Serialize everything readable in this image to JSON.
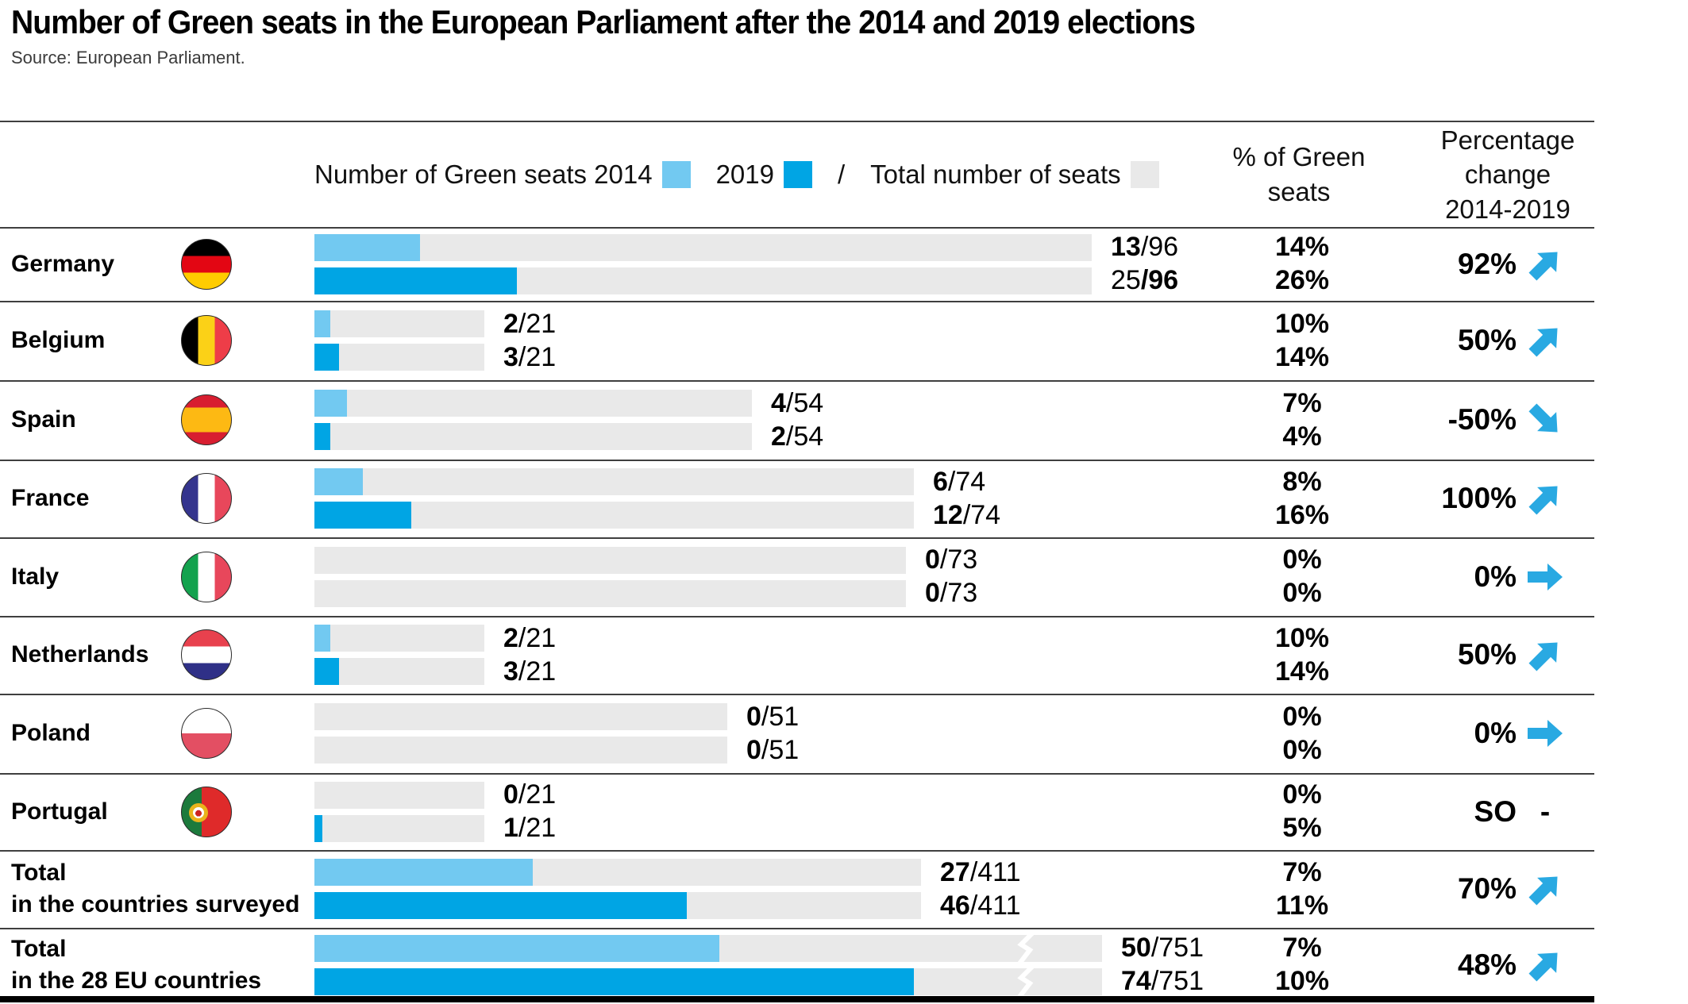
{
  "title": "Number of Green seats in the European Parliament after the 2014 and 2019 elections",
  "source": "Source: European Parliament.",
  "legend": {
    "label_2014": "Number of Green seats 2014",
    "label_2019": "2019",
    "slash": "/",
    "label_total": "Total number of seats"
  },
  "columns": {
    "pct_line1": "% of Green",
    "pct_line2": "seats",
    "chg_line1": "Percentage",
    "chg_line2": "change",
    "chg_line3": "2014-2019"
  },
  "colors": {
    "bar_2014": "#72C9F1",
    "bar_2019": "#00A5E4",
    "track": "#E9E9E9",
    "arrow": "#29A9E2"
  },
  "rows": [
    {
      "label": "Germany",
      "flag": "germany",
      "bars": [
        {
          "seats": 13,
          "total": 96,
          "num": "13",
          "den": "/96",
          "num_bold": true,
          "den_bold": false,
          "pct": "14%"
        },
        {
          "seats": 25,
          "total": 96,
          "num": "25",
          "den": "/96",
          "num_bold": false,
          "den_bold": true,
          "pct": "26%"
        }
      ],
      "change": {
        "value": "92%",
        "arrow": "up"
      }
    },
    {
      "label": "Belgium",
      "flag": "belgium",
      "bars": [
        {
          "seats": 2,
          "total": 21,
          "num": "2",
          "den": "/21",
          "num_bold": true,
          "den_bold": false,
          "pct": "10%"
        },
        {
          "seats": 3,
          "total": 21,
          "num": "3",
          "den": "/21",
          "num_bold": true,
          "den_bold": false,
          "pct": "14%"
        }
      ],
      "change": {
        "value": "50%",
        "arrow": "up"
      }
    },
    {
      "label": "Spain",
      "flag": "spain",
      "bars": [
        {
          "seats": 4,
          "total": 54,
          "num": "4",
          "den": "/54",
          "num_bold": true,
          "den_bold": false,
          "pct": "7%"
        },
        {
          "seats": 2,
          "total": 54,
          "num": "2",
          "den": "/54",
          "num_bold": true,
          "den_bold": false,
          "pct": "4%"
        }
      ],
      "change": {
        "value": "-50%",
        "arrow": "down"
      }
    },
    {
      "label": "France",
      "flag": "france",
      "bars": [
        {
          "seats": 6,
          "total": 74,
          "num": "6",
          "den": "/74",
          "num_bold": true,
          "den_bold": false,
          "pct": "8%"
        },
        {
          "seats": 12,
          "total": 74,
          "num": "12",
          "den": "/74",
          "num_bold": true,
          "den_bold": false,
          "pct": "16%"
        }
      ],
      "change": {
        "value": "100%",
        "arrow": "up"
      }
    },
    {
      "label": "Italy",
      "flag": "italy",
      "bars": [
        {
          "seats": 0,
          "total": 73,
          "num": "0",
          "den": "/73",
          "num_bold": true,
          "den_bold": false,
          "pct": "0%"
        },
        {
          "seats": 0,
          "total": 73,
          "num": "0",
          "den": "/73",
          "num_bold": true,
          "den_bold": false,
          "pct": "0%"
        }
      ],
      "change": {
        "value": "0%",
        "arrow": "right"
      }
    },
    {
      "label": "Netherlands",
      "flag": "netherlands",
      "bars": [
        {
          "seats": 2,
          "total": 21,
          "num": "2",
          "den": "/21",
          "num_bold": true,
          "den_bold": false,
          "pct": "10%"
        },
        {
          "seats": 3,
          "total": 21,
          "num": "3",
          "den": "/21",
          "num_bold": true,
          "den_bold": false,
          "pct": "14%"
        }
      ],
      "change": {
        "value": "50%",
        "arrow": "up"
      }
    },
    {
      "label": "Poland",
      "flag": "poland",
      "bars": [
        {
          "seats": 0,
          "total": 51,
          "num": "0",
          "den": "/51",
          "num_bold": true,
          "den_bold": false,
          "pct": "0%"
        },
        {
          "seats": 0,
          "total": 51,
          "num": "0",
          "den": "/51",
          "num_bold": true,
          "den_bold": false,
          "pct": "0%"
        }
      ],
      "change": {
        "value": "0%",
        "arrow": "right"
      }
    },
    {
      "label": "Portugal",
      "flag": "portugal",
      "bars": [
        {
          "seats": 0,
          "total": 21,
          "num": "0",
          "den": "/21",
          "num_bold": true,
          "den_bold": false,
          "pct": "0%"
        },
        {
          "seats": 1,
          "total": 21,
          "num": "1",
          "den": "/21",
          "num_bold": true,
          "den_bold": false,
          "pct": "5%"
        }
      ],
      "change": {
        "value": "SO",
        "arrow": "dash",
        "dash": "-"
      }
    },
    {
      "label": "Total",
      "label2": "in the countries surveyed",
      "flag": null,
      "bars": [
        {
          "seats": 27,
          "total": 411,
          "num": "27",
          "den": "/411",
          "num_bold": true,
          "den_bold": false,
          "pct": "7%"
        },
        {
          "seats": 46,
          "total": 411,
          "num": "46",
          "den": "/411",
          "num_bold": true,
          "den_bold": false,
          "pct": "11%"
        }
      ],
      "change": {
        "value": "70%",
        "arrow": "up"
      }
    },
    {
      "label": "Total",
      "label2": "in the 28 EU countries",
      "flag": null,
      "axis_break": true,
      "bars": [
        {
          "seats": 50,
          "total": 751,
          "num": "50",
          "den": "/751",
          "num_bold": true,
          "den_bold": false,
          "pct": "7%"
        },
        {
          "seats": 74,
          "total": 751,
          "num": "74",
          "den": "/751",
          "num_bold": true,
          "den_bold": false,
          "pct": "10%"
        }
      ],
      "change": {
        "value": "48%",
        "arrow": "up"
      }
    }
  ],
  "chart_data": {
    "type": "bar",
    "title": "Number of Green seats in the European Parliament after the 2014 and 2019 elections",
    "source": "Source: European Parliament.",
    "categories": [
      "Germany",
      "Belgium",
      "Spain",
      "France",
      "Italy",
      "Netherlands",
      "Poland",
      "Portugal",
      "Total in the countries surveyed",
      "Total in the 28 EU countries"
    ],
    "series": [
      {
        "name": "Number of Green seats 2014",
        "color": "#72C9F1",
        "values": [
          13,
          2,
          4,
          6,
          0,
          2,
          0,
          0,
          27,
          50
        ]
      },
      {
        "name": "Number of Green seats 2019",
        "color": "#00A5E4",
        "values": [
          25,
          3,
          2,
          12,
          0,
          3,
          0,
          1,
          46,
          74
        ]
      },
      {
        "name": "Total number of seats",
        "color": "#E9E9E9",
        "values": [
          96,
          21,
          54,
          74,
          73,
          21,
          51,
          21,
          411,
          751
        ]
      }
    ],
    "pct_green_2014": [
      "14%",
      "10%",
      "7%",
      "8%",
      "0%",
      "10%",
      "0%",
      "0%",
      "7%",
      "7%"
    ],
    "pct_green_2019": [
      "26%",
      "14%",
      "4%",
      "16%",
      "0%",
      "14%",
      "0%",
      "5%",
      "11%",
      "10%"
    ],
    "pct_change_2014_2019": [
      "92%",
      "50%",
      "-50%",
      "100%",
      "0%",
      "50%",
      "0%",
      "SO",
      "70%",
      "48%"
    ],
    "trend_arrows": [
      "up",
      "up",
      "down",
      "up",
      "right",
      "up",
      "right",
      "dash",
      "up",
      "up"
    ],
    "legend_position": "top",
    "bars_horizontal": true,
    "axis_break_rows": [
      "Total in the 28 EU countries"
    ]
  }
}
